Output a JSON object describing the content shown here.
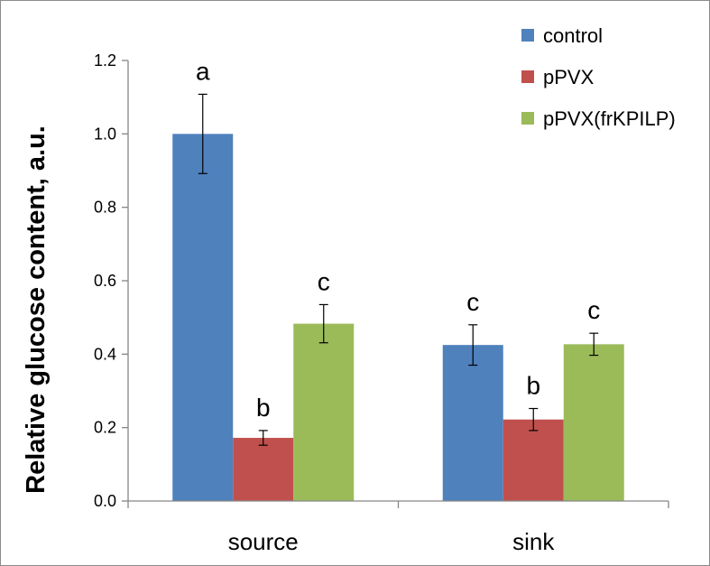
{
  "chart_data": {
    "type": "bar",
    "categories": [
      "source",
      "sink"
    ],
    "series": [
      {
        "name": "control",
        "color": "#4f81bd",
        "values": [
          1.0,
          0.425
        ],
        "errors": [
          0.108,
          0.055
        ],
        "labels": [
          "a",
          "c"
        ]
      },
      {
        "name": "pPVX",
        "color": "#c0504d",
        "values": [
          0.172,
          0.222
        ],
        "errors": [
          0.02,
          0.03
        ],
        "labels": [
          "b",
          "b"
        ]
      },
      {
        "name": "pPVX(frKPILP)",
        "color": "#9bbb59",
        "values": [
          0.483,
          0.427
        ],
        "errors": [
          0.052,
          0.03
        ],
        "labels": [
          "c",
          "c"
        ]
      }
    ],
    "title": "",
    "xlabel": "",
    "ylabel": "Relative glucose content, a.u.",
    "ylim": [
      0,
      1.2
    ],
    "yticks": [
      0.0,
      0.2,
      0.4,
      0.6,
      0.8,
      1.0,
      1.2
    ],
    "ytick_labels": [
      "0.0",
      "0.2",
      "0.4",
      "0.6",
      "0.8",
      "1.0",
      "1.2"
    ],
    "grid": false,
    "legend_position": "top-right"
  }
}
